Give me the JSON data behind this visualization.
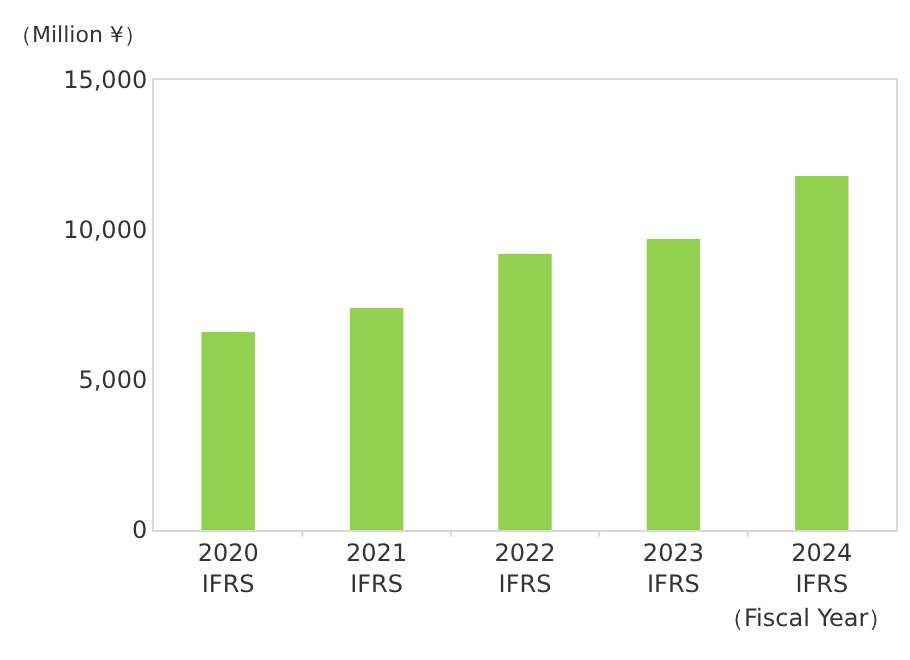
{
  "chart_data": {
    "type": "bar",
    "categories": [
      "2020\nIFRS",
      "2021\nIFRS",
      "2022\nIFRS",
      "2023\nIFRS",
      "2024\nIFRS"
    ],
    "values": [
      6600,
      7400,
      9200,
      9700,
      11800
    ],
    "color": "#92d050",
    "ylabel": "（Million ¥）",
    "xlabel": "（Fiscal Year）",
    "ylim": [
      0,
      15000
    ],
    "yticks": [
      {
        "value": 0,
        "label": "0"
      },
      {
        "value": 5000,
        "label": "5,000"
      },
      {
        "value": 10000,
        "label": "10,000"
      },
      {
        "value": 15000,
        "label": "15,000"
      }
    ],
    "legend": false
  }
}
